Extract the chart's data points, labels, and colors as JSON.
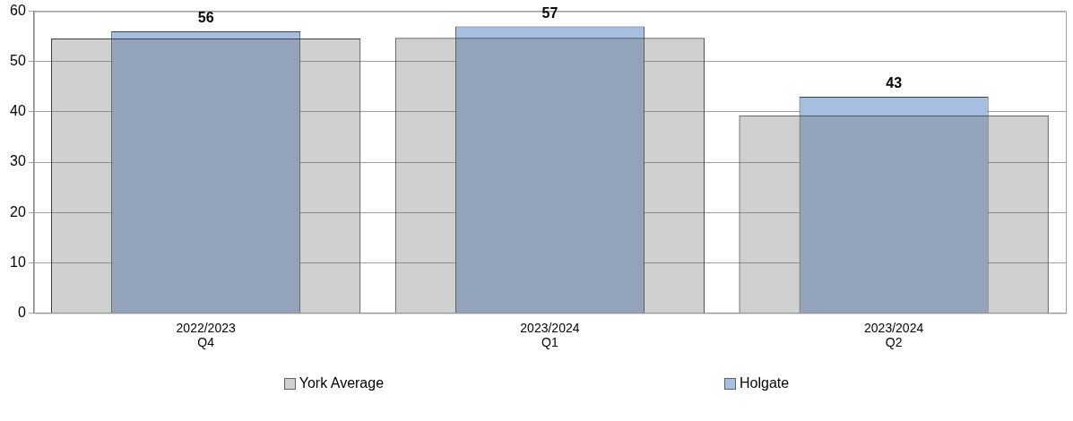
{
  "chart_data": {
    "type": "bar",
    "categories": [
      "2022/2023 Q4",
      "2023/2024 Q1",
      "2023/2024 Q2"
    ],
    "series": [
      {
        "name": "York Average",
        "color": "#626262",
        "values": [
          54.6,
          54.7,
          39.3
        ]
      },
      {
        "name": "Holgate",
        "color": "#a6bfe0",
        "values": [
          56,
          57,
          43
        ],
        "value_labels": [
          "56",
          "57",
          "43"
        ]
      }
    ],
    "ylim": [
      0,
      60
    ],
    "yticks": [
      0,
      10,
      20,
      30,
      40,
      50,
      60
    ],
    "grid": "y",
    "legend": "bottom"
  }
}
